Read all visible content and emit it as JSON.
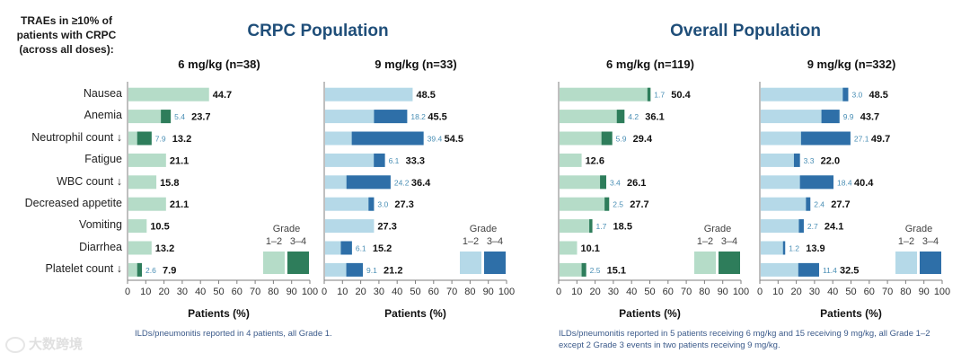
{
  "header_note": "TRAEs in ≥10% of patients with CRPC (across all doses):",
  "sections": [
    {
      "title": "CRPC Population",
      "footnote": "ILDs/pneumonitis reported in 4 patients, all Grade 1."
    },
    {
      "title": "Overall Population",
      "footnote": "ILDs/pneumonitis reported in 5 patients receiving 6 mg/kg and 15 receiving 9 mg/kg, all Grade 1–2 except 2 Grade 3 events in two patients receiving 9 mg/kg."
    }
  ],
  "legend": {
    "title": "Grade",
    "low": "1–2",
    "high": "3–4"
  },
  "watermark": "大数跨境",
  "colors": {
    "green_light": "#b5dcc8",
    "green_dark": "#2e7d5b",
    "blue_light": "#b5d9e8",
    "blue_dark": "#2e6fa8",
    "axis": "#7f7f7f",
    "title": "#1f4e79"
  },
  "chart_data": [
    {
      "type": "bar",
      "orientation": "horizontal",
      "stacked": true,
      "section": "CRPC Population",
      "title": "6 mg/kg (n=38)",
      "xlabel": "Patients (%)",
      "xlim": [
        0,
        100
      ],
      "xticks": [
        0,
        10,
        20,
        30,
        40,
        50,
        60,
        70,
        80,
        90,
        100
      ],
      "categories": [
        "Nausea",
        "Anemia",
        "Neutrophil count ↓",
        "Fatigue",
        "WBC count ↓",
        "Decreased appetite",
        "Vomiting",
        "Diarrhea",
        "Platelet count ↓"
      ],
      "totals": [
        44.7,
        23.7,
        13.2,
        21.1,
        15.8,
        21.1,
        10.5,
        13.2,
        7.9
      ],
      "grade_3_4": [
        null,
        5.4,
        7.9,
        null,
        null,
        null,
        null,
        null,
        2.6
      ],
      "color_scheme": "green",
      "legend": true
    },
    {
      "type": "bar",
      "orientation": "horizontal",
      "stacked": true,
      "section": "CRPC Population",
      "title": "9 mg/kg (n=33)",
      "xlabel": "Patients (%)",
      "xlim": [
        0,
        100
      ],
      "xticks": [
        0,
        10,
        20,
        30,
        40,
        50,
        60,
        70,
        80,
        90,
        100
      ],
      "categories": [
        "Nausea",
        "Anemia",
        "Neutrophil count ↓",
        "Fatigue",
        "WBC count ↓",
        "Decreased appetite",
        "Vomiting",
        "Diarrhea",
        "Platelet count ↓"
      ],
      "totals": [
        48.5,
        45.5,
        54.5,
        33.3,
        36.4,
        27.3,
        27.3,
        15.2,
        21.2
      ],
      "grade_3_4": [
        null,
        18.2,
        39.4,
        6.1,
        24.2,
        3.0,
        null,
        6.1,
        9.1
      ],
      "color_scheme": "blue",
      "legend": true
    },
    {
      "type": "bar",
      "orientation": "horizontal",
      "stacked": true,
      "section": "Overall Population",
      "title": "6 mg/kg (n=119)",
      "xlabel": "Patients (%)",
      "xlim": [
        0,
        100
      ],
      "xticks": [
        0,
        10,
        20,
        30,
        40,
        50,
        60,
        70,
        80,
        90,
        100
      ],
      "categories": [
        "Nausea",
        "Anemia",
        "Neutrophil count ↓",
        "Fatigue",
        "WBC count ↓",
        "Decreased appetite",
        "Vomiting",
        "Diarrhea",
        "Platelet count ↓"
      ],
      "totals": [
        50.4,
        36.1,
        29.4,
        12.6,
        26.1,
        27.7,
        18.5,
        10.1,
        15.1
      ],
      "grade_3_4": [
        1.7,
        4.2,
        5.9,
        null,
        3.4,
        2.5,
        1.7,
        null,
        2.5
      ],
      "color_scheme": "green",
      "legend": true
    },
    {
      "type": "bar",
      "orientation": "horizontal",
      "stacked": true,
      "section": "Overall Population",
      "title": "9 mg/kg (n=332)",
      "xlabel": "Patients (%)",
      "xlim": [
        0,
        100
      ],
      "xticks": [
        0,
        10,
        20,
        30,
        40,
        50,
        60,
        70,
        80,
        90,
        100
      ],
      "categories": [
        "Nausea",
        "Anemia",
        "Neutrophil count ↓",
        "Fatigue",
        "WBC count ↓",
        "Decreased appetite",
        "Vomiting",
        "Diarrhea",
        "Platelet count ↓"
      ],
      "totals": [
        48.5,
        43.7,
        49.7,
        22.0,
        40.4,
        27.7,
        24.1,
        13.9,
        32.5
      ],
      "grade_3_4": [
        3.0,
        9.9,
        27.1,
        3.3,
        18.4,
        2.4,
        2.7,
        1.2,
        11.4
      ],
      "color_scheme": "blue",
      "legend": true
    }
  ]
}
